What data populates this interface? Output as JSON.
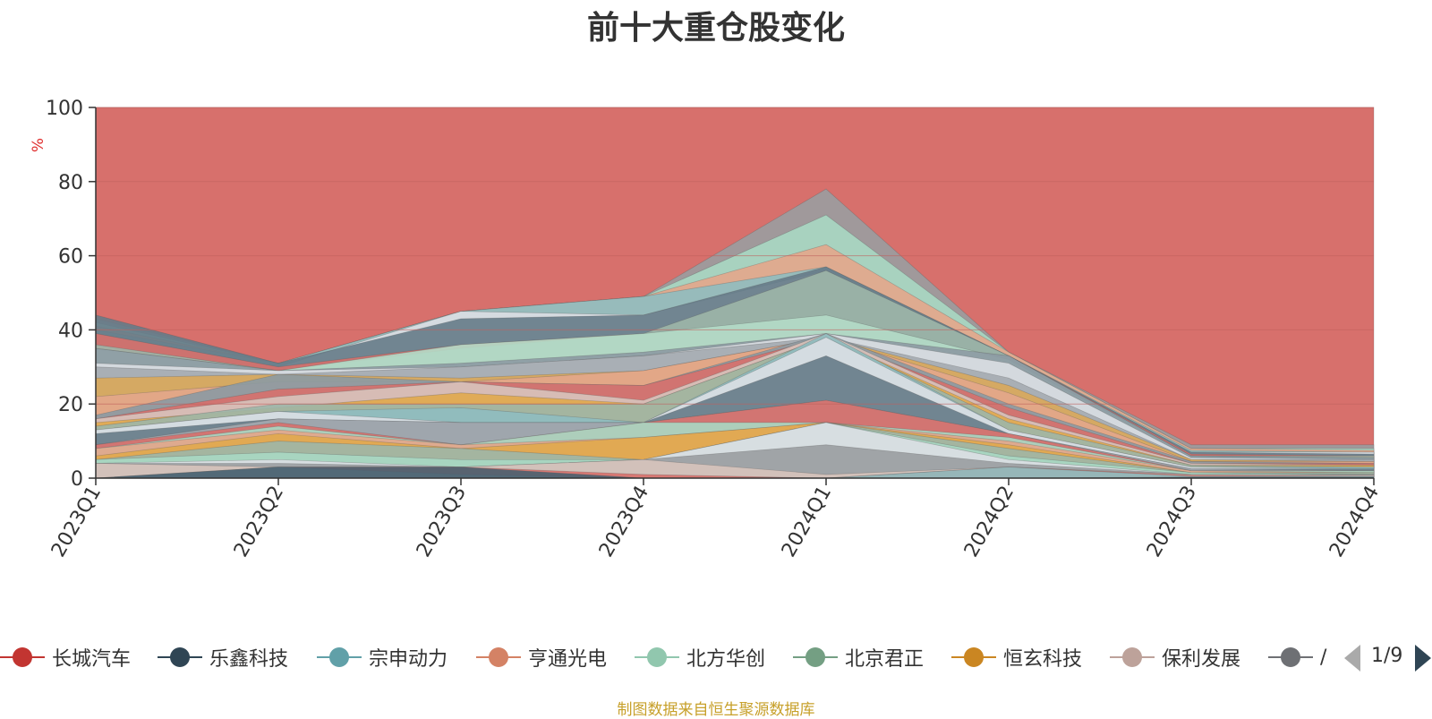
{
  "chart_data": {
    "type": "area",
    "title": "前十大重仓股变化",
    "ylabel": "%",
    "ylim": [
      0,
      100
    ],
    "yticks": [
      0,
      20,
      40,
      60,
      80,
      100
    ],
    "grid": true,
    "legend_position": "bottom",
    "categories": [
      "2023Q1",
      "2023Q2",
      "2023Q3",
      "2023Q4",
      "2024Q1",
      "2024Q2",
      "2024Q3",
      "2024Q4"
    ],
    "bands": [
      {
        "color": "#d7706c",
        "values": [
          100,
          100,
          100,
          100,
          100,
          100,
          100,
          100
        ]
      },
      {
        "color": "#9a9da1",
        "values": [
          43,
          31,
          45,
          49,
          78,
          34,
          9,
          9
        ]
      },
      {
        "color": "#a9d8c3",
        "values": [
          42,
          31,
          45,
          49,
          71,
          34,
          8,
          8
        ]
      },
      {
        "color": "#e3a68b",
        "values": [
          41,
          31,
          45,
          49,
          63,
          34,
          8,
          7.5
        ]
      },
      {
        "color": "#8fbcc0",
        "values": [
          40,
          31,
          45,
          49,
          57,
          33,
          7.5,
          7
        ]
      },
      {
        "color": "#dcdfe4",
        "values": [
          39,
          30,
          45,
          44,
          56,
          33,
          7,
          7
        ]
      },
      {
        "color": "#667b88",
        "values": [
          44,
          31,
          43,
          44,
          57,
          33,
          7,
          6.5
        ]
      },
      {
        "color": "#d7706c",
        "values": [
          39,
          30,
          36,
          39,
          39,
          33,
          6.5,
          6
        ]
      },
      {
        "color": "#9db6a8",
        "values": [
          36,
          29,
          35,
          39,
          56,
          33,
          6,
          6
        ]
      },
      {
        "color": "#b4dcc8",
        "values": [
          35,
          29,
          36,
          39,
          44,
          32,
          6,
          5.5
        ]
      },
      {
        "color": "#8c9aa3",
        "values": [
          35,
          29,
          31,
          34,
          39,
          33,
          6,
          5.5
        ]
      },
      {
        "color": "#dcdfe4",
        "values": [
          31,
          29,
          30,
          33,
          39,
          31,
          5.5,
          5
        ]
      },
      {
        "color": "#a4aab0",
        "values": [
          30,
          28,
          30,
          33,
          38,
          27,
          5,
          5
        ]
      },
      {
        "color": "#d9a85a",
        "values": [
          27,
          28,
          27,
          29,
          38,
          25,
          5,
          4.5
        ]
      },
      {
        "color": "#e3a68b",
        "values": [
          22,
          26,
          26,
          29,
          38,
          23,
          4.5,
          4.5
        ]
      },
      {
        "color": "#8c9aa3",
        "values": [
          17,
          28,
          26,
          25,
          39,
          20,
          4.5,
          4
        ]
      },
      {
        "color": "#d7706c",
        "values": [
          16,
          24,
          26,
          25,
          38,
          19,
          4,
          4
        ]
      },
      {
        "color": "#d7c4bd",
        "values": [
          16,
          22,
          26,
          21,
          39,
          17,
          4,
          3.5
        ]
      },
      {
        "color": "#e1a94d",
        "values": [
          15,
          19,
          23,
          20,
          38,
          16,
          3.5,
          3.5
        ]
      },
      {
        "color": "#9db6a8",
        "values": [
          14,
          20,
          20,
          20,
          38,
          15,
          3.5,
          3
        ]
      },
      {
        "color": "#8fbcc0",
        "values": [
          13,
          18,
          19,
          15,
          39,
          13,
          3,
          3
        ]
      },
      {
        "color": "#dcdfe4",
        "values": [
          13,
          18,
          15,
          15,
          38,
          13,
          3,
          2.5
        ]
      },
      {
        "color": "#667b88",
        "values": [
          12,
          16,
          15,
          15,
          33,
          12,
          2.5,
          2.5
        ]
      },
      {
        "color": "#a4aab0",
        "values": [
          9,
          16,
          15,
          15,
          21,
          12,
          2.5,
          2
        ]
      },
      {
        "color": "#d7706c",
        "values": [
          9,
          15,
          9,
          15,
          21,
          12,
          2,
          2
        ]
      },
      {
        "color": "#a9d8c3",
        "values": [
          8,
          14,
          9,
          15,
          15,
          11,
          2,
          2
        ]
      },
      {
        "color": "#e3a68b",
        "values": [
          8,
          13,
          9,
          11,
          15,
          10,
          2,
          1.5
        ]
      },
      {
        "color": "#e1a94d",
        "values": [
          6,
          12,
          8,
          11,
          15,
          9,
          1.5,
          1.5
        ]
      },
      {
        "color": "#9db6a8",
        "values": [
          5,
          10,
          8,
          5,
          15,
          8,
          1.5,
          1.5
        ]
      },
      {
        "color": "#a9d8c3",
        "values": [
          5,
          7,
          5,
          5,
          15,
          6,
          1.5,
          1
        ]
      },
      {
        "color": "#dcdfe4",
        "values": [
          4,
          5,
          3,
          5,
          15,
          5,
          1,
          1
        ]
      },
      {
        "color": "#9a9da1",
        "values": [
          4,
          4,
          3,
          5,
          9,
          4,
          1,
          1
        ]
      },
      {
        "color": "#d7c4bd",
        "values": [
          4,
          3,
          3,
          5,
          1,
          3,
          1,
          0.8
        ]
      },
      {
        "color": "#d7706c",
        "values": [
          0,
          3,
          3,
          1,
          0,
          3,
          0.8,
          0.5
        ]
      },
      {
        "color": "#8fbcc0",
        "values": [
          0,
          3,
          1,
          0,
          0,
          3,
          0.5,
          0.5
        ]
      },
      {
        "color": "#4a6070",
        "values": [
          0,
          3,
          3,
          0,
          0,
          0,
          0.3,
          0.3
        ]
      }
    ],
    "series": [
      {
        "name": "长城汽车",
        "color": "#c23531"
      },
      {
        "name": "乐鑫科技",
        "color": "#2f4554"
      },
      {
        "name": "宗申动力",
        "color": "#61a0a8"
      },
      {
        "name": "亨通光电",
        "color": "#d48265"
      },
      {
        "name": "北方华创",
        "color": "#91c7ae"
      },
      {
        "name": "北京君正",
        "color": "#749f83"
      },
      {
        "name": "恒玄科技",
        "color": "#ca8622"
      },
      {
        "name": "保利发展",
        "color": "#bda29a"
      },
      {
        "name": "",
        "color": "#6e7074"
      }
    ]
  },
  "legend": {
    "page_indicator": "1/9",
    "partial_label": "/"
  },
  "source_note": "制图数据来自恒生聚源数据库",
  "colors": {
    "axis": "#333333",
    "grid": "#c0615d",
    "ylabel": "#e03030",
    "source": "#c7a02a"
  }
}
